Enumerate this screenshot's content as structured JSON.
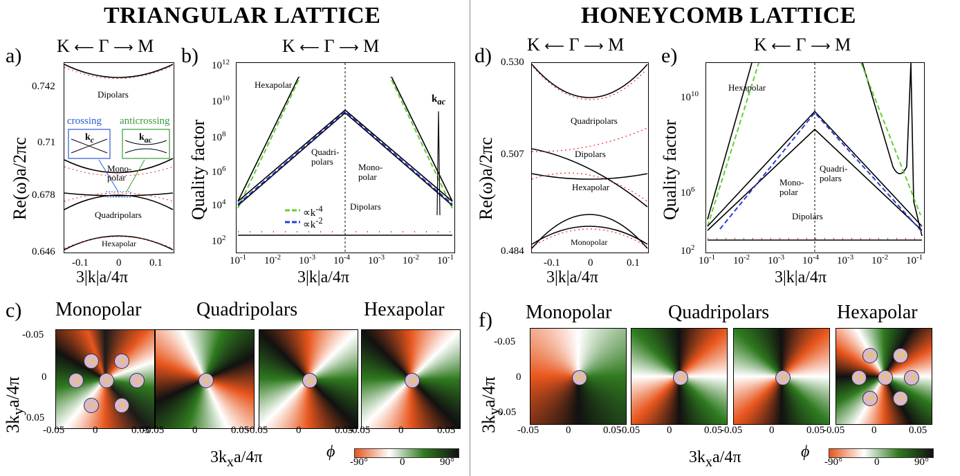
{
  "titles": {
    "left": "TRIANGULAR LATTICE",
    "right": "HONEYCOMB LATTICE"
  },
  "panel_labels": {
    "a": "a)",
    "b": "b)",
    "c": "c)",
    "d": "d)",
    "e": "e)",
    "f": "f)"
  },
  "direction_header": {
    "k": "K",
    "gamma": "Γ",
    "m": "M"
  },
  "panel_a": {
    "ylabel": "Re(ω)a/2πc",
    "xlabel": "3|k|a/4π",
    "yticks": [
      "0.742",
      "0.71",
      "0.678",
      "0.646"
    ],
    "xticks": [
      "-0.1",
      "0",
      "0.1"
    ],
    "labels": {
      "dipolars": "Dipolars",
      "crossing": "crossing",
      "anticrossing": "anticrossing",
      "kc": "k",
      "kc_sub": "c",
      "kac": "k",
      "kac_sub": "ac",
      "monopolar": "Mono-\npolar",
      "quadripolars": "Quadripolars",
      "hexapolar": "Hexapolar"
    },
    "colors": {
      "crossing": "#2a5bd7",
      "anticrossing": "#3a9a3a"
    }
  },
  "panel_b": {
    "ylabel": "Quality factor",
    "xlabel": "3|k|a/4π",
    "yticks": [
      {
        "b": "10",
        "e": "12"
      },
      {
        "b": "10",
        "e": "10"
      },
      {
        "b": "10",
        "e": "8"
      },
      {
        "b": "10",
        "e": "6"
      },
      {
        "b": "10",
        "e": "4"
      },
      {
        "b": "10",
        "e": "2"
      }
    ],
    "xticks": [
      {
        "b": "10",
        "e": "-1"
      },
      {
        "b": "10",
        "e": "-2"
      },
      {
        "b": "10",
        "e": "-3"
      },
      {
        "b": "10",
        "e": "-4"
      },
      {
        "b": "10",
        "e": "-3"
      },
      {
        "b": "10",
        "e": "-2"
      },
      {
        "b": "10",
        "e": "-1"
      }
    ],
    "labels": {
      "hexapolar": "Hexapolar",
      "quadripolars": "Quadri-\npolars",
      "monopolar": "Mono-\npolar",
      "dipolars": "Dipolars",
      "kac": "k",
      "kac_sub": "ac"
    },
    "legend": [
      {
        "text": "∝k",
        "exp": "-4",
        "color": "#66cc33"
      },
      {
        "text": "∝k",
        "exp": "-2",
        "color": "#2a3bd7"
      }
    ]
  },
  "panel_d": {
    "ylabel": "Re(ω)a/2πc",
    "xlabel": "3|k|a/4π",
    "yticks": [
      "0.530",
      "0.507",
      "0.484"
    ],
    "xticks": [
      "-0.1",
      "0",
      "0.1"
    ],
    "labels": {
      "quadripolars": "Quadripolars",
      "dipolars": "Dipolars",
      "hexapolar": "Hexapolar",
      "monopolar": "Monopolar"
    }
  },
  "panel_e": {
    "ylabel": "Quality factor",
    "xlabel": "3|k|a/4π",
    "yticks": [
      {
        "b": "10",
        "e": "10"
      },
      {
        "b": "10",
        "e": "6"
      },
      {
        "b": "10",
        "e": "2"
      }
    ],
    "xticks": [
      {
        "b": "10",
        "e": "-1"
      },
      {
        "b": "10",
        "e": "-2"
      },
      {
        "b": "10",
        "e": "-3"
      },
      {
        "b": "10",
        "e": "-4"
      },
      {
        "b": "10",
        "e": "-3"
      },
      {
        "b": "10",
        "e": "-2"
      },
      {
        "b": "10",
        "e": "-1"
      }
    ],
    "labels": {
      "hexapolar": "Hexapolar",
      "monopolar": "Mono-\npolar",
      "quadripolars": "Quadri-\npolars",
      "dipolars": "Dipolars"
    }
  },
  "maps_left": {
    "titles": [
      "Monopolar",
      "Quadripolars",
      "Hexapolar"
    ],
    "ylabel": "3kya/4π",
    "xlabel": "3kxa/4π",
    "yticks": [
      "-0.05",
      "0",
      "0.05"
    ],
    "xticks": [
      "-0.05",
      "0",
      "0.05"
    ],
    "charges": [
      [
        "-1",
        "-1",
        "-1",
        "-1",
        "-1",
        "-1",
        "-1"
      ],
      [
        "-2"
      ],
      [
        "-2"
      ],
      [
        "-2"
      ]
    ]
  },
  "maps_right": {
    "titles": [
      "Monopolar",
      "Quadripolars",
      "Hexapolar"
    ],
    "ylabel": "3kya/4π",
    "xlabel": "3kxa/4π",
    "yticks": [
      "-0.05",
      "0",
      "0.05"
    ],
    "xticks": [
      "-0.05",
      "0",
      "0.05"
    ],
    "charges": [
      [
        "+1"
      ],
      [
        "-2"
      ],
      [
        "-2"
      ],
      [
        "+1",
        "+1",
        "+1",
        "+1",
        "-1",
        "-2",
        "-1"
      ]
    ]
  },
  "colorbar": {
    "symbol": "ϕ",
    "ticks": [
      "-90°",
      "0",
      "90°"
    ],
    "colors": [
      "#e8561d",
      "#ffffff",
      "#2f7a1f"
    ]
  }
}
